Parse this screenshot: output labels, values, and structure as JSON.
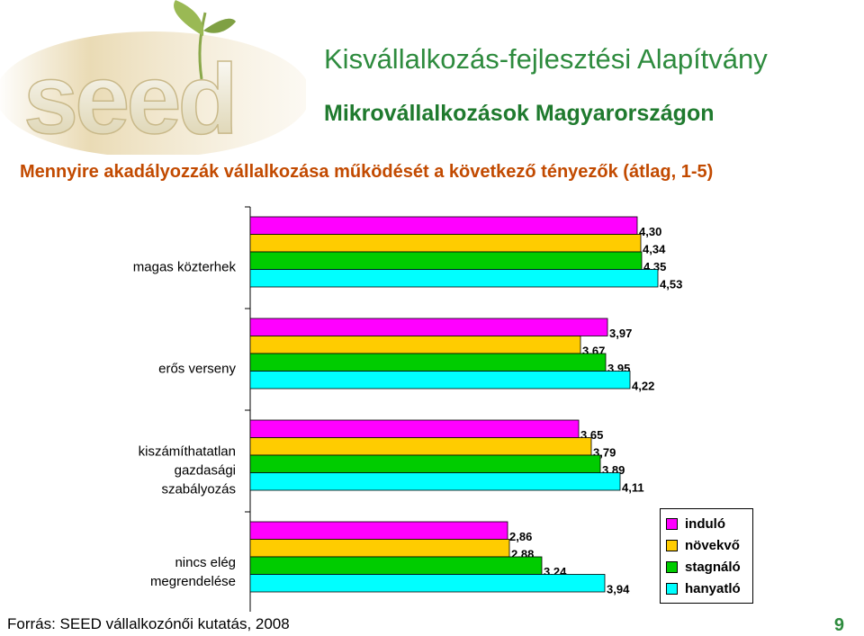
{
  "logo": {
    "text": "seed"
  },
  "header": {
    "org_title": "Kisvállalkozás-fejlesztési Alapítvány",
    "sub_title": "Mikrovállalkozások Magyarországon"
  },
  "question": "Mennyire akadályozzák vállalkozása működését a következő tényezők (átlag, 1-5)",
  "chart_data": {
    "type": "bar",
    "orientation": "horizontal",
    "title": "Mennyire akadályozzák vállalkozása működését a következő tényezők (átlag, 1-5)",
    "categories": [
      [
        "magas közterhek"
      ],
      [
        "erős verseny"
      ],
      [
        "kiszámíthatatlan",
        "gazdasági",
        "szabályozás"
      ],
      [
        "nincs elég",
        "megrendelése"
      ]
    ],
    "series": [
      {
        "name": "induló",
        "color": "#ff00ff",
        "values": [
          4.3,
          3.97,
          3.65,
          2.86
        ],
        "labels": [
          "4,30",
          "3,97",
          "3,65",
          "2,86"
        ]
      },
      {
        "name": "növekvő",
        "color": "#ffcc00",
        "values": [
          4.34,
          3.67,
          3.79,
          2.88
        ],
        "labels": [
          "4,34",
          "3,67",
          "3,79",
          "2,88"
        ]
      },
      {
        "name": "stagnáló",
        "color": "#00cc00",
        "values": [
          4.35,
          3.95,
          3.89,
          3.24
        ],
        "labels": [
          "4,35",
          "3,95",
          "3,89",
          "3,24"
        ]
      },
      {
        "name": "hanyatló",
        "color": "#00ffff",
        "values": [
          4.53,
          4.22,
          4.11,
          3.94
        ],
        "labels": [
          "4,53",
          "4,22",
          "4,11",
          "3,94"
        ]
      }
    ],
    "xlim": [
      0,
      5
    ],
    "grid": false,
    "legend_position": "bottom-right"
  },
  "footer": {
    "source": "Forrás: SEED vállalkozónői kutatás, 2008",
    "page_number": "9"
  }
}
